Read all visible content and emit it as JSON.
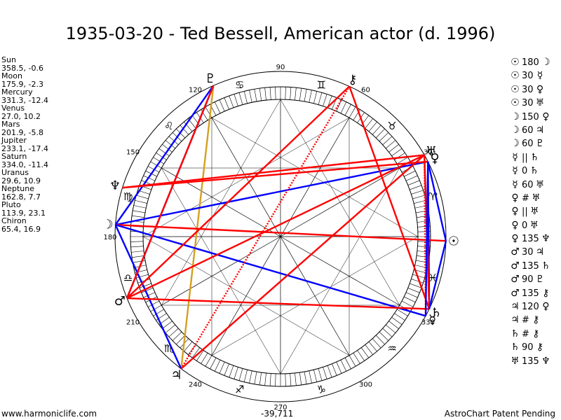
{
  "title": "1935-03-20 - Ted Bessell, American actor (d. 1996)",
  "positions": [
    {
      "name": "Sun",
      "value": "358.5, -0.6"
    },
    {
      "name": "Moon",
      "value": "175.9, -2.3"
    },
    {
      "name": "Mercury",
      "value": "331.3, -12.4"
    },
    {
      "name": "Venus",
      "value": "27.0, 10.2"
    },
    {
      "name": "Mars",
      "value": "201.9, -5.8"
    },
    {
      "name": "Jupiter",
      "value": "233.1, -17.4"
    },
    {
      "name": "Saturn",
      "value": "334.0, -11.4"
    },
    {
      "name": "Uranus",
      "value": "29.6, 10.9"
    },
    {
      "name": "Neptune",
      "value": "162.8, 7.7"
    },
    {
      "name": "Pluto",
      "value": "113.9, 23.1"
    },
    {
      "name": "Chiron",
      "value": "65.4, 16.9"
    }
  ],
  "aspects": [
    {
      "a": "☉",
      "t": "180",
      "b": "☽"
    },
    {
      "a": "☉",
      "t": "30",
      "b": "☿"
    },
    {
      "a": "☉",
      "t": "30",
      "b": "♀"
    },
    {
      "a": "☉",
      "t": "30",
      "b": "♅"
    },
    {
      "a": "☽",
      "t": "150",
      "b": "♀"
    },
    {
      "a": "☽",
      "t": "60",
      "b": "♃"
    },
    {
      "a": "☽",
      "t": "60",
      "b": "♇"
    },
    {
      "a": "☿",
      "t": "||",
      "b": "♄"
    },
    {
      "a": "☿",
      "t": "0",
      "b": "♄"
    },
    {
      "a": "☿",
      "t": "60",
      "b": "♅"
    },
    {
      "a": "♀",
      "t": "#",
      "b": "♅"
    },
    {
      "a": "♀",
      "t": "||",
      "b": "♅"
    },
    {
      "a": "♀",
      "t": "0",
      "b": "♅"
    },
    {
      "a": "♀",
      "t": "135",
      "b": "♆"
    },
    {
      "a": "♂",
      "t": "30",
      "b": "♃"
    },
    {
      "a": "♂",
      "t": "135",
      "b": "♄"
    },
    {
      "a": "♂",
      "t": "90",
      "b": "♇"
    },
    {
      "a": "♂",
      "t": "135",
      "b": "⚷"
    },
    {
      "a": "♃",
      "t": "120",
      "b": "♀"
    },
    {
      "a": "♃",
      "t": "#",
      "b": "⚷"
    },
    {
      "a": "♄",
      "t": "#",
      "b": "⚷"
    },
    {
      "a": "♄",
      "t": "90",
      "b": "⚷"
    },
    {
      "a": "♅",
      "t": "135",
      "b": "♆"
    }
  ],
  "wheel": {
    "degree_labels": [
      "90",
      "60",
      "30",
      "330",
      "300",
      "270",
      "240",
      "210",
      "180",
      "150",
      "120"
    ],
    "zodiac": [
      {
        "name": "aries",
        "glyph": "♈",
        "lon": 15
      },
      {
        "name": "taurus",
        "glyph": "♉",
        "lon": 45
      },
      {
        "name": "gemini",
        "glyph": "♊",
        "lon": 75
      },
      {
        "name": "cancer",
        "glyph": "♋",
        "lon": 105
      },
      {
        "name": "leo",
        "glyph": "♌",
        "lon": 135
      },
      {
        "name": "virgo",
        "glyph": "♍",
        "lon": 165
      },
      {
        "name": "libra",
        "glyph": "♎",
        "lon": 195
      },
      {
        "name": "scorpio",
        "glyph": "♏",
        "lon": 225
      },
      {
        "name": "sagittarius",
        "glyph": "♐",
        "lon": 255
      },
      {
        "name": "capricorn",
        "glyph": "♑",
        "lon": 285
      },
      {
        "name": "aquarius",
        "glyph": "♒",
        "lon": 315
      },
      {
        "name": "pisces",
        "glyph": "♓",
        "lon": 345
      }
    ],
    "planets": [
      {
        "name": "sun",
        "glyph": "☉",
        "lon": 358.5
      },
      {
        "name": "moon",
        "glyph": "☽",
        "lon": 175.9
      },
      {
        "name": "mercury",
        "glyph": "☿",
        "lon": 331.3
      },
      {
        "name": "venus",
        "glyph": "♀",
        "lon": 27.0
      },
      {
        "name": "mars",
        "glyph": "♂",
        "lon": 201.9
      },
      {
        "name": "jupiter",
        "glyph": "♃",
        "lon": 233.1
      },
      {
        "name": "saturn",
        "glyph": "♄",
        "lon": 334.0
      },
      {
        "name": "uranus",
        "glyph": "♅",
        "lon": 29.6
      },
      {
        "name": "neptune",
        "glyph": "♆",
        "lon": 162.8
      },
      {
        "name": "pluto",
        "glyph": "♇",
        "lon": 113.9
      },
      {
        "name": "chiron",
        "glyph": "⚷",
        "lon": 65.4
      }
    ],
    "aspect_lines": [
      {
        "from": "pluto",
        "to": "moon",
        "color": "#0000ff",
        "style": "solid"
      },
      {
        "from": "pluto",
        "to": "mars",
        "color": "#0000ff",
        "style": "solid"
      },
      {
        "from": "pluto",
        "to": "jupiter",
        "color": "#d4a020",
        "style": "solid"
      },
      {
        "from": "moon",
        "to": "venus",
        "color": "#0000ff",
        "style": "solid"
      },
      {
        "from": "moon",
        "to": "jupiter",
        "color": "#0000ff",
        "style": "solid"
      },
      {
        "from": "moon",
        "to": "sun",
        "color": "#ff0000",
        "style": "solid"
      },
      {
        "from": "moon",
        "to": "mercury",
        "color": "#0000ff",
        "style": "solid"
      },
      {
        "from": "neptune",
        "to": "venus",
        "color": "#ff0000",
        "style": "solid"
      },
      {
        "from": "neptune",
        "to": "uranus",
        "color": "#ff0000",
        "style": "solid"
      },
      {
        "from": "mars",
        "to": "pluto",
        "color": "#ff0000",
        "style": "solid"
      },
      {
        "from": "mars",
        "to": "saturn",
        "color": "#ff0000",
        "style": "solid"
      },
      {
        "from": "mars",
        "to": "uranus",
        "color": "#ff0000",
        "style": "solid"
      },
      {
        "from": "mars",
        "to": "chiron",
        "color": "#ff0000",
        "style": "solid"
      },
      {
        "from": "jupiter",
        "to": "uranus",
        "color": "#ff0000",
        "style": "solid"
      },
      {
        "from": "jupiter",
        "to": "chiron",
        "color": "#ff0000",
        "style": "dotted"
      },
      {
        "from": "chiron",
        "to": "saturn",
        "color": "#ff0000",
        "style": "solid"
      },
      {
        "from": "venus",
        "to": "saturn",
        "color": "#0000ff",
        "style": "solid"
      },
      {
        "from": "venus",
        "to": "sun",
        "color": "#0000ff",
        "style": "solid"
      },
      {
        "from": "uranus",
        "to": "saturn",
        "color": "#ff0000",
        "style": "solid"
      },
      {
        "from": "uranus",
        "to": "mercury",
        "color": "#ff0000",
        "style": "dotted"
      },
      {
        "from": "sun",
        "to": "saturn",
        "color": "#0000ff",
        "style": "solid"
      },
      {
        "from": "venus",
        "to": "mercury",
        "color": "#0000ff",
        "style": "solid"
      }
    ]
  },
  "footer": {
    "site": "www.harmoniclife.com",
    "value": "-39,711",
    "patent": "AstroChart Patent Pending"
  }
}
